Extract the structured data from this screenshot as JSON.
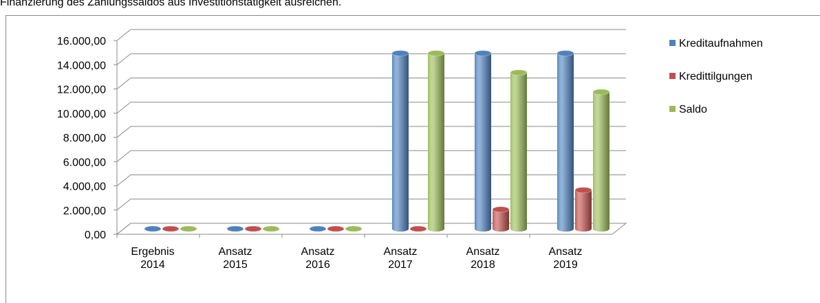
{
  "caption": "Finanzierung des Zahlungssaldos aus Investitionstätigkeit ausreichen.",
  "chart_data": {
    "type": "bar3d",
    "categories": [
      "Ergebnis 2014",
      "Ansatz 2015",
      "Ansatz 2016",
      "Ansatz 2017",
      "Ansatz 2018",
      "Ansatz 2019"
    ],
    "series": [
      {
        "name": "Kreditaufnahmen",
        "color": "#4f81bd",
        "values": [
          0,
          0,
          0,
          14500,
          14500,
          14500
        ]
      },
      {
        "name": "Kredittilgungen",
        "color": "#c0504d",
        "values": [
          0,
          0,
          0,
          0,
          1600,
          3200
        ]
      },
      {
        "name": "Saldo",
        "color": "#9bbb59",
        "values": [
          0,
          0,
          0,
          14500,
          12900,
          11300
        ]
      }
    ],
    "ylim": [
      0,
      16000
    ],
    "yticks": [
      {
        "value": 0,
        "label": "0,00"
      },
      {
        "value": 2000,
        "label": "2.000,00"
      },
      {
        "value": 4000,
        "label": "4.000,00"
      },
      {
        "value": 6000,
        "label": "6.000,00"
      },
      {
        "value": 8000,
        "label": "8.000,00"
      },
      {
        "value": 10000,
        "label": "10.000,00"
      },
      {
        "value": 12000,
        "label": "12.000,00"
      },
      {
        "value": 14000,
        "label": "14.000,00"
      },
      {
        "value": 16000,
        "label": "16.000,00"
      }
    ],
    "grid": true,
    "legend": "right"
  }
}
